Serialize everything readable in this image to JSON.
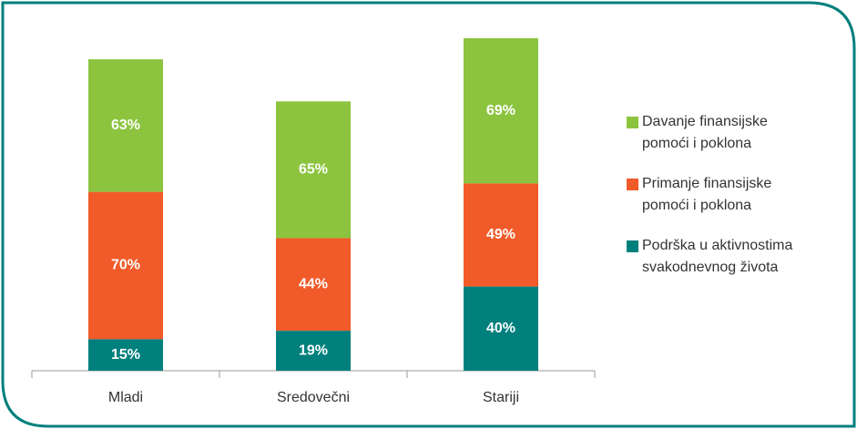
{
  "chart_data": {
    "type": "stacked_bar",
    "categories": [
      "Mladi",
      "Sredovečni",
      "Stariji"
    ],
    "series": [
      {
        "name": "Davanje finansijske pomoći i poklona",
        "color": "#8cc43f",
        "values": [
          63,
          65,
          69
        ],
        "value_labels": [
          "63%",
          "65%",
          "69%"
        ]
      },
      {
        "name": "Primanje finansijske pomoći i poklona",
        "color": "#f15a29",
        "values": [
          70,
          44,
          49
        ],
        "value_labels": [
          "70%",
          "44%",
          "49%"
        ]
      },
      {
        "name": "Podrška u aktivnostima svakodnevnog života",
        "color": "#00807d",
        "values": [
          15,
          19,
          40
        ],
        "value_labels": [
          "15%",
          "19%",
          "40%"
        ]
      }
    ]
  }
}
